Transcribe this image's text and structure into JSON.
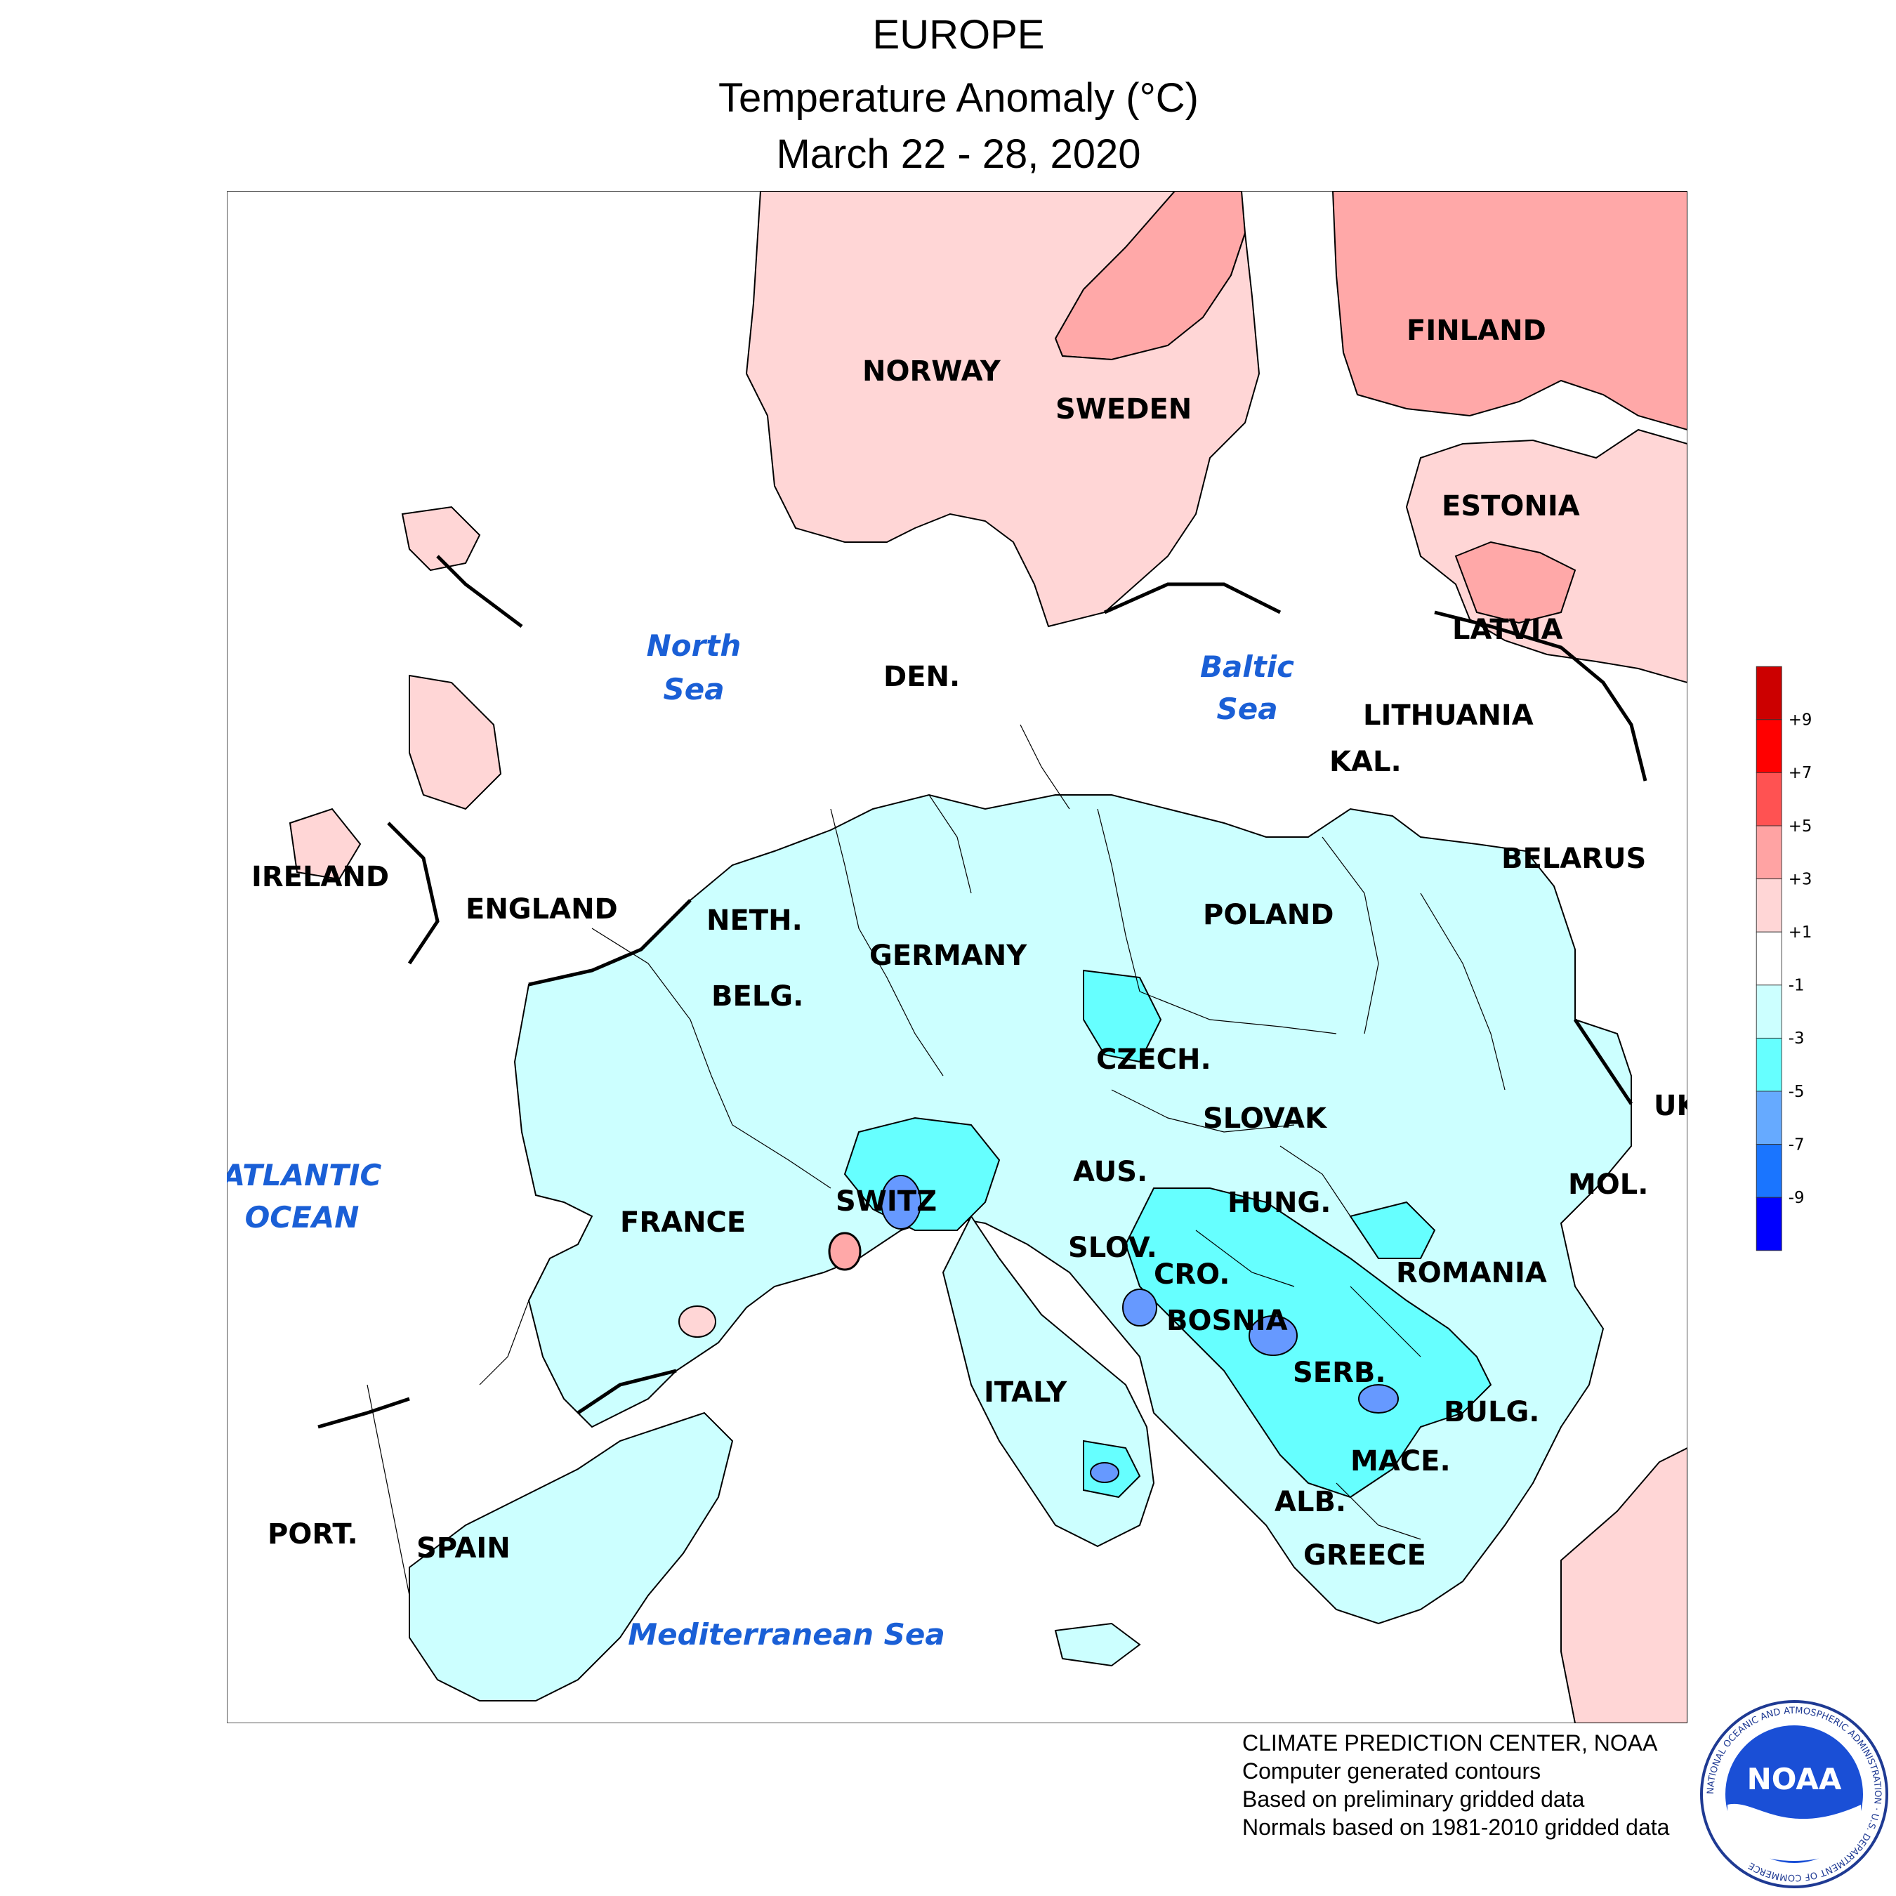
{
  "header": {
    "title": "EUROPE",
    "subtitle": "Temperature Anomaly (°C)",
    "date_range": "March 22 - 28, 2020"
  },
  "map": {
    "country_labels": {
      "finland": "FINLAND",
      "norway": "NORWAY",
      "sweden": "SWEDEN",
      "estonia": "ESTONIA",
      "latvia": "LATVIA",
      "lithuania": "LITHUANIA",
      "kal": "KAL.",
      "belarus": "BELARUS",
      "ireland": "IRELAND",
      "england": "ENGLAND",
      "den": "DEN.",
      "neth": "NETH.",
      "belg": "BELG.",
      "germany": "GERMANY",
      "poland": "POLAND",
      "czech": "CZECH.",
      "slovak": "SLOVAK",
      "uk": "UK",
      "aus": "AUS.",
      "hung": "HUNG.",
      "mol": "MOL.",
      "switz": "SWITZ",
      "france": "FRANCE",
      "slov": "SLOV.",
      "cro": "CRO.",
      "romania": "ROMANIA",
      "bosnia": "BOSNIA",
      "serb": "SERB.",
      "bulg": "BULG.",
      "italy": "ITALY",
      "mace": "MACE.",
      "alb": "ALB.",
      "greece": "GREECE",
      "port": "PORT.",
      "spain": "SPAIN"
    },
    "water_labels": {
      "north_sea_1": "North",
      "north_sea_2": "Sea",
      "baltic_sea_1": "Baltic",
      "baltic_sea_2": "Sea",
      "atlantic_1": "ATLANTIC",
      "atlantic_2": "OCEAN",
      "mediterranean": "Mediterranean Sea"
    },
    "colors": {
      "land_fill_neutral": "#ffffff",
      "minus1_to_minus3": "#ccffff",
      "minus3_to_minus5": "#66ffff",
      "minus5_to_minus7": "#6699ff",
      "plus1_to_plus3": "#ffd6d6",
      "plus3_to_plus5": "#ffa8a8",
      "water_label": "#1a5fd6"
    }
  },
  "legend": {
    "labels": [
      "+9",
      "+7",
      "+5",
      "+3",
      "+1",
      "-1",
      "-3",
      "-5",
      "-7",
      "-9"
    ],
    "colors": [
      "#cc0000",
      "#ff0000",
      "#ff5252",
      "#ffa3a3",
      "#ffd6d6",
      "#ffffff",
      "#ccffff",
      "#66ffff",
      "#66aaff",
      "#1a75ff",
      "#0000ff"
    ]
  },
  "footer": {
    "line1": "CLIMATE PREDICTION CENTER, NOAA",
    "line2": "Computer generated contours",
    "line3": "Based on preliminary gridded data",
    "line4": "Normals based on 1981-2010 gridded data"
  },
  "logo": {
    "text": "NOAA",
    "ring_text": "NATIONAL OCEANIC AND ATMOSPHERIC ADMINISTRATION · U.S. DEPARTMENT OF COMMERCE"
  }
}
